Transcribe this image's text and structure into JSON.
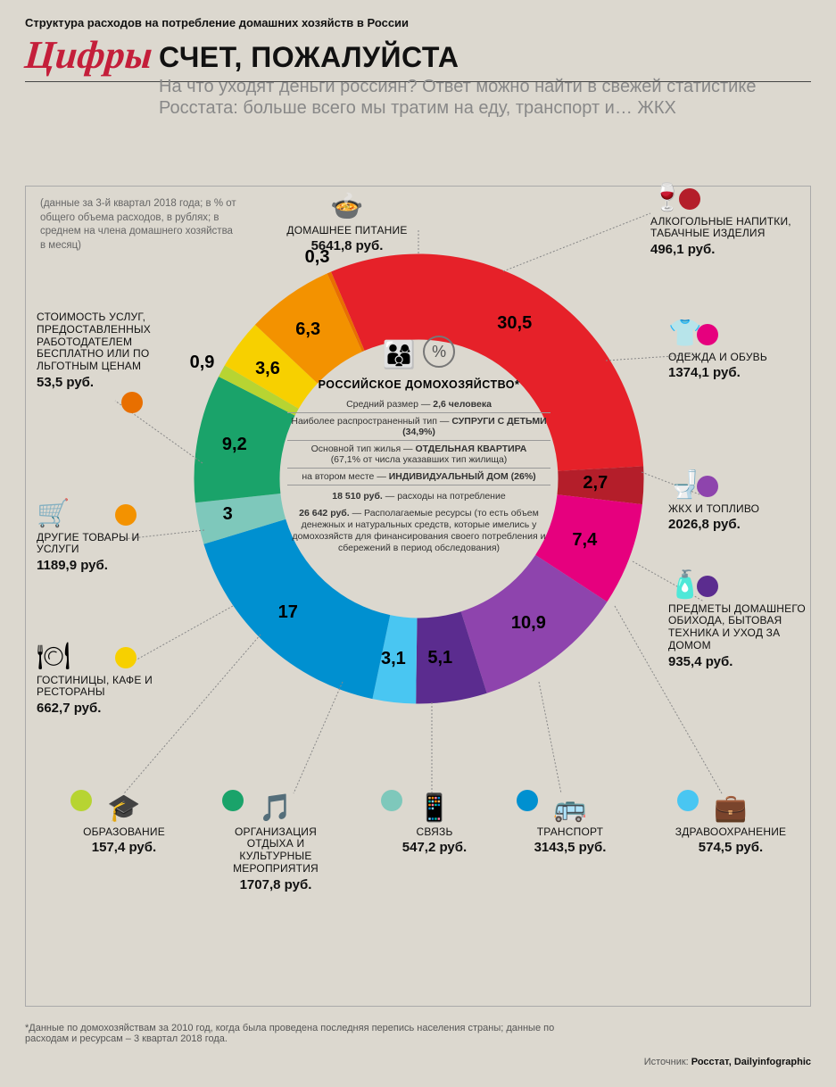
{
  "brand": "Цифры",
  "title": "СЧЕТ, ПОЖАЛУЙСТА",
  "lede": "На что уходят деньги россиян? Ответ можно найти в свежей статистике Росстата: больше всего мы тратим на еду, транспорт и… ЖКХ",
  "subhead": "Структура расходов на потребление домашних хозяйств в России",
  "context_note": "(данные за 3-й квартал 2018 года; в % от общего объема расходов, в рублях; в среднем на члена домашнего хозяйства в месяц)",
  "center": {
    "header": "РОССИЙСКОЕ ДОМОХОЗЯЙСТВО*",
    "row1_a": "Средний размер — ",
    "row1_b": "2,6 человека",
    "row2_a": "Наиболее распространенный тип — ",
    "row2_b": "СУПРУГИ С ДЕТЬМИ (34,9%)",
    "row3_a": "Основной тип жилья — ",
    "row3_b": "ОТДЕЛЬНАЯ КВАРТИРА",
    "row3_c": "(67,1% от числа указавших тип жилища)",
    "row4_a": "на втором месте — ",
    "row4_b": "ИНДИВИДУАЛЬНЫЙ ДОМ (26%)",
    "fin1_b": "18 510 руб.",
    "fin1_a": " — расходы на потребление",
    "fin2_b": "26 642 руб.",
    "fin2_a": " — Располагаемые ресурсы (то есть объем денежных и натуральных средств, которые имелись у домохозяйств для финансирования своего потребления и сбережений в период обследования)"
  },
  "donut": {
    "type": "donut",
    "inner_r": 156,
    "outer_r": 252,
    "bg": "#dcd8cf",
    "slices": [
      {
        "key": "food",
        "pct": 30.5,
        "color": "#e62129",
        "label": "ДОМАШНЕЕ ПИТАНИЕ",
        "value": "5641,8 руб.",
        "icon": "🍲"
      },
      {
        "key": "alcohol",
        "pct": 2.7,
        "color": "#b41e2a",
        "label": "АЛКОГОЛЬНЫЕ НАПИТКИ, ТАБАЧНЫЕ ИЗДЕЛИЯ",
        "value": "496,1 руб.",
        "icon": "🍷"
      },
      {
        "key": "clothes",
        "pct": 7.4,
        "color": "#e6007e",
        "label": "ОДЕЖДА И ОБУВЬ",
        "value": "1374,1 руб.",
        "icon": "👕"
      },
      {
        "key": "utilities",
        "pct": 10.9,
        "color": "#8e44ad",
        "label": "ЖКХ И ТОПЛИВО",
        "value": "2026,8 руб.",
        "icon": "🚽"
      },
      {
        "key": "household",
        "pct": 5.1,
        "color": "#5b2c8f",
        "label": "ПРЕДМЕТЫ ДОМАШНЕГО ОБИХОДА, БЫТОВАЯ ТЕХНИКА И УХОД ЗА ДОМОМ",
        "value": "935,4 руб.",
        "icon": "🧴"
      },
      {
        "key": "health",
        "pct": 3.1,
        "color": "#49c6f2",
        "label": "ЗДРАВООХРАНЕНИЕ",
        "value": "574,5 руб.",
        "icon": "💼"
      },
      {
        "key": "transport",
        "pct": 17.0,
        "color": "#0090d0",
        "label": "ТРАНСПОРТ",
        "value": "3143,5 руб.",
        "icon": "🚌"
      },
      {
        "key": "comms",
        "pct": 3.0,
        "color": "#7ec8bb",
        "label": "СВЯЗЬ",
        "value": "547,2 руб.",
        "icon": "📱"
      },
      {
        "key": "leisure",
        "pct": 9.2,
        "color": "#1aa36a",
        "label": "ОРГАНИЗАЦИЯ ОТДЫХА И КУЛЬТУРНЫЕ МЕРОПРИЯТИЯ",
        "value": "1707,8 руб.",
        "icon": "🎵"
      },
      {
        "key": "education",
        "pct": 0.9,
        "color": "#b7d432",
        "label": "ОБРАЗОВАНИЕ",
        "value": "157,4 руб.",
        "icon": "🎓"
      },
      {
        "key": "hotels",
        "pct": 3.6,
        "color": "#f7d000",
        "label": "ГОСТИНИЦЫ, КАФЕ И РЕСТОРАНЫ",
        "value": "662,7 руб.",
        "icon": "🍽"
      },
      {
        "key": "other",
        "pct": 6.3,
        "color": "#f39200",
        "label": "ДРУГИЕ ТОВАРЫ И УСЛУГИ",
        "value": "1189,9 руб.",
        "icon": "🛒"
      },
      {
        "key": "employer",
        "pct": 0.3,
        "color": "#e86f00",
        "label": "СТОИМОСТЬ УСЛУГ, ПРЕДОСТАВЛЕННЫХ РАБОТОДАТЕЛЕМ БЕСПЛАТНО ИЛИ ПО ЛЬГОТНЫМ ЦЕНАМ",
        "value": "53,5 руб.",
        "icon": ""
      }
    ],
    "start_angle_deg": -113,
    "pct_font": 20
  },
  "footnote": "*Данные по домохозяйствам за 2010 год, когда была проведена последняя перепись населения страны; данные по расходам и ресурсам – 3 квартал 2018 года.",
  "source_label": "Источник: ",
  "source": "Росстат, Dailyinfographic"
}
